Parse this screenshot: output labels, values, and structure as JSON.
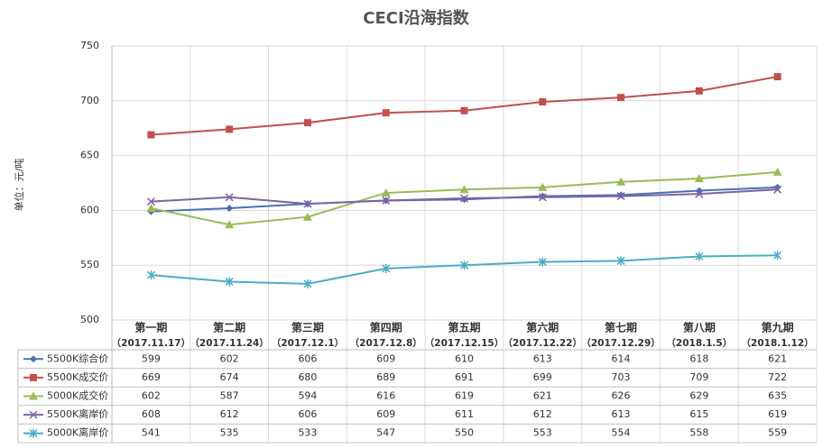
{
  "chart_data": {
    "type": "line",
    "title": "CECI沿海指数",
    "y_label": "单位：元/吨",
    "categories": [
      "第一期",
      "第二期",
      "第三期",
      "第四期",
      "第五期",
      "第六期",
      "第七期",
      "第八期",
      "第九期"
    ],
    "category_dates": [
      "（2017.11.17）",
      "（2017.11.24）",
      "（2017.12.1）",
      "（2017.12.8）",
      "（2017.12.15）",
      "（2017.12.22）",
      "（2017.12.29）",
      "（2018.1.5）",
      "（2018.1.12）"
    ],
    "series": [
      {
        "name": "5500K综合价",
        "color": "#4a72b8",
        "marker": "diamond",
        "values": [
          599,
          602,
          606,
          609,
          610,
          613,
          614,
          618,
          621
        ]
      },
      {
        "name": "5500K成交价",
        "color": "#c0504d",
        "marker": "square",
        "values": [
          669,
          674,
          680,
          689,
          691,
          699,
          703,
          709,
          722
        ]
      },
      {
        "name": "5000K成交价",
        "color": "#9bbb59",
        "marker": "triangle",
        "values": [
          602,
          587,
          594,
          616,
          619,
          621,
          626,
          629,
          635
        ]
      },
      {
        "name": "5500K离岸价",
        "color": "#7f63a1",
        "marker": "x",
        "values": [
          608,
          612,
          606,
          609,
          611,
          612,
          613,
          615,
          619
        ]
      },
      {
        "name": "5000K离岸价",
        "color": "#4bacc6",
        "marker": "star",
        "values": [
          541,
          535,
          533,
          547,
          550,
          553,
          554,
          558,
          559
        ]
      }
    ],
    "ylim": [
      500,
      750
    ],
    "yticks": [
      500,
      550,
      600,
      650,
      700,
      750
    ],
    "grid": true
  }
}
